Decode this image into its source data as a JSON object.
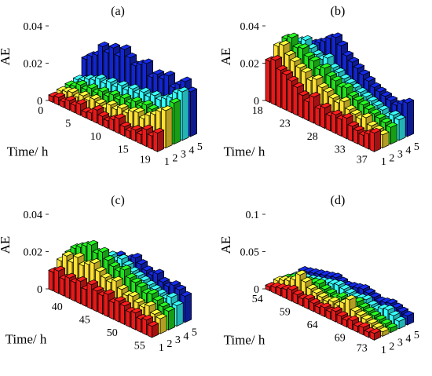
{
  "colors": {
    "series_1": "#e61a1a",
    "series_2": "#ffe033",
    "series_3": "#22e01e",
    "series_4": "#33ffff",
    "series_5": "#1226cc"
  },
  "chart_data": [
    {
      "type": "bar3d",
      "title": "(a)",
      "zlabel": "AE",
      "xlabel": "Time/ h",
      "zlim": [
        0,
        0.04
      ],
      "z_ticks": [
        "0",
        "0.02",
        "0.04"
      ],
      "time_ticks": [
        "0",
        "5",
        "10",
        "15",
        "19"
      ],
      "series_ticks": [
        "1",
        "2",
        "3",
        "4",
        "5"
      ],
      "time": [
        0,
        1,
        2,
        3,
        4,
        5,
        6,
        7,
        8,
        9,
        10,
        11,
        12,
        13,
        14,
        15,
        16,
        17,
        18,
        19
      ],
      "series": [
        {
          "values": [
            0.003,
            0.004,
            0.003,
            0.005,
            0.004,
            0.006,
            0.003,
            0.004,
            0.007,
            0.005,
            0.004,
            0.006,
            0.008,
            0.005,
            0.004,
            0.006,
            0.005,
            0.009,
            0.007,
            0.01
          ]
        },
        {
          "values": [
            0.004,
            0.005,
            0.006,
            0.005,
            0.007,
            0.006,
            0.008,
            0.007,
            0.006,
            0.009,
            0.008,
            0.01,
            0.009,
            0.011,
            0.012,
            0.01,
            0.013,
            0.015,
            0.018,
            0.02
          ]
        },
        {
          "values": [
            0.005,
            0.006,
            0.008,
            0.007,
            0.009,
            0.008,
            0.01,
            0.009,
            0.011,
            0.01,
            0.012,
            0.011,
            0.013,
            0.012,
            0.014,
            0.013,
            0.012,
            0.014,
            0.016,
            0.022
          ]
        },
        {
          "values": [
            0.006,
            0.007,
            0.009,
            0.01,
            0.012,
            0.011,
            0.013,
            0.012,
            0.014,
            0.013,
            0.015,
            0.014,
            0.016,
            0.015,
            0.017,
            0.016,
            0.018,
            0.02,
            0.024,
            0.026
          ]
        },
        {
          "values": [
            0.015,
            0.018,
            0.02,
            0.026,
            0.024,
            0.028,
            0.025,
            0.03,
            0.027,
            0.024,
            0.026,
            0.028,
            0.022,
            0.025,
            0.024,
            0.027,
            0.022,
            0.025,
            0.028,
            0.024
          ]
        }
      ]
    },
    {
      "type": "bar3d",
      "title": "(b)",
      "zlabel": "AE",
      "xlabel": "Time/ h",
      "zlim": [
        0,
        0.04
      ],
      "z_ticks": [
        "0",
        "0.02",
        "0.04"
      ],
      "time_ticks": [
        "18",
        "23",
        "28",
        "33",
        "37"
      ],
      "series_ticks": [
        "1",
        "2",
        "3",
        "4",
        "5"
      ],
      "time": [
        18,
        19,
        20,
        21,
        22,
        23,
        24,
        25,
        26,
        27,
        28,
        29,
        30,
        31,
        32,
        33,
        34,
        35,
        36,
        37
      ],
      "series": [
        {
          "values": [
            0.022,
            0.024,
            0.02,
            0.019,
            0.017,
            0.015,
            0.012,
            0.01,
            0.014,
            0.009,
            0.011,
            0.008,
            0.01,
            0.009,
            0.011,
            0.008,
            0.007,
            0.006,
            0.008,
            0.01
          ]
        },
        {
          "values": [
            0.028,
            0.03,
            0.026,
            0.024,
            0.022,
            0.021,
            0.018,
            0.02,
            0.017,
            0.016,
            0.014,
            0.013,
            0.015,
            0.012,
            0.011,
            0.01,
            0.012,
            0.009,
            0.008,
            0.007
          ]
        },
        {
          "values": [
            0.03,
            0.032,
            0.028,
            0.029,
            0.026,
            0.025,
            0.022,
            0.024,
            0.021,
            0.02,
            0.018,
            0.019,
            0.016,
            0.015,
            0.014,
            0.013,
            0.012,
            0.011,
            0.01,
            0.009
          ]
        },
        {
          "values": [
            0.026,
            0.028,
            0.03,
            0.027,
            0.025,
            0.024,
            0.026,
            0.022,
            0.021,
            0.019,
            0.018,
            0.017,
            0.016,
            0.015,
            0.014,
            0.013,
            0.012,
            0.01,
            0.012,
            0.011
          ]
        },
        {
          "values": [
            0.024,
            0.022,
            0.026,
            0.028,
            0.03,
            0.033,
            0.035,
            0.032,
            0.028,
            0.026,
            0.024,
            0.022,
            0.02,
            0.018,
            0.017,
            0.016,
            0.015,
            0.014,
            0.016,
            0.018
          ]
        }
      ]
    },
    {
      "type": "bar3d",
      "title": "(c)",
      "zlabel": "AE",
      "xlabel": "Time/ h",
      "zlim": [
        0,
        0.04
      ],
      "z_ticks": [
        "0",
        "0.02",
        "0.04"
      ],
      "time_ticks": [
        "40",
        "45",
        "50",
        "55"
      ],
      "series_ticks": [
        "1",
        "2",
        "3",
        "4",
        "5"
      ],
      "time": [
        37,
        38,
        39,
        40,
        41,
        42,
        43,
        44,
        45,
        46,
        47,
        48,
        49,
        50,
        51,
        52,
        53,
        54,
        55
      ],
      "series": [
        {
          "values": [
            0.01,
            0.012,
            0.009,
            0.011,
            0.01,
            0.012,
            0.009,
            0.013,
            0.011,
            0.01,
            0.012,
            0.009,
            0.011,
            0.01,
            0.008,
            0.009,
            0.007,
            0.008,
            0.006
          ]
        },
        {
          "values": [
            0.014,
            0.018,
            0.016,
            0.02,
            0.017,
            0.019,
            0.021,
            0.018,
            0.016,
            0.015,
            0.017,
            0.014,
            0.012,
            0.013,
            0.011,
            0.01,
            0.012,
            0.009,
            0.008
          ]
        },
        {
          "values": [
            0.016,
            0.02,
            0.022,
            0.024,
            0.026,
            0.023,
            0.025,
            0.022,
            0.02,
            0.019,
            0.021,
            0.018,
            0.017,
            0.016,
            0.014,
            0.015,
            0.013,
            0.011,
            0.01
          ]
        },
        {
          "values": [
            0.012,
            0.014,
            0.016,
            0.018,
            0.017,
            0.019,
            0.021,
            0.02,
            0.022,
            0.02,
            0.018,
            0.017,
            0.016,
            0.015,
            0.014,
            0.013,
            0.012,
            0.014,
            0.011
          ]
        },
        {
          "values": [
            0.01,
            0.012,
            0.014,
            0.016,
            0.015,
            0.017,
            0.019,
            0.018,
            0.02,
            0.022,
            0.02,
            0.018,
            0.017,
            0.019,
            0.016,
            0.015,
            0.017,
            0.016,
            0.014
          ]
        }
      ]
    },
    {
      "type": "bar3d",
      "title": "(d)",
      "zlabel": "AE",
      "xlabel": "Time/ h",
      "zlim": [
        0,
        0.1
      ],
      "z_ticks": [
        "0",
        "0.05",
        "0.1"
      ],
      "time_ticks": [
        "54",
        "59",
        "64",
        "69",
        "73"
      ],
      "series_ticks": [
        "1",
        "2",
        "3",
        "4",
        "5"
      ],
      "time": [
        54,
        55,
        56,
        57,
        58,
        59,
        60,
        61,
        62,
        63,
        64,
        65,
        66,
        67,
        68,
        69,
        70,
        71,
        72,
        73
      ],
      "series": [
        {
          "values": [
            0.005,
            0.008,
            0.01,
            0.012,
            0.015,
            0.012,
            0.01,
            0.013,
            0.011,
            0.009,
            0.012,
            0.01,
            0.014,
            0.011,
            0.009,
            0.012,
            0.008,
            0.01,
            0.007,
            0.009
          ]
        },
        {
          "values": [
            0.008,
            0.012,
            0.015,
            0.02,
            0.03,
            0.024,
            0.018,
            0.016,
            0.014,
            0.012,
            0.015,
            0.013,
            0.02,
            0.028,
            0.016,
            0.014,
            0.012,
            0.01,
            0.008,
            0.006
          ]
        },
        {
          "values": [
            0.006,
            0.01,
            0.012,
            0.014,
            0.016,
            0.018,
            0.02,
            0.016,
            0.014,
            0.012,
            0.016,
            0.014,
            0.018,
            0.02,
            0.016,
            0.014,
            0.012,
            0.01,
            0.008,
            0.006
          ]
        },
        {
          "values": [
            0.004,
            0.006,
            0.008,
            0.01,
            0.012,
            0.014,
            0.016,
            0.018,
            0.02,
            0.018,
            0.016,
            0.014,
            0.016,
            0.018,
            0.014,
            0.012,
            0.016,
            0.018,
            0.014,
            0.01
          ]
        },
        {
          "values": [
            0.006,
            0.008,
            0.01,
            0.012,
            0.014,
            0.016,
            0.018,
            0.016,
            0.014,
            0.016,
            0.018,
            0.02,
            0.018,
            0.016,
            0.014,
            0.016,
            0.018,
            0.016,
            0.014,
            0.012
          ]
        }
      ]
    }
  ]
}
